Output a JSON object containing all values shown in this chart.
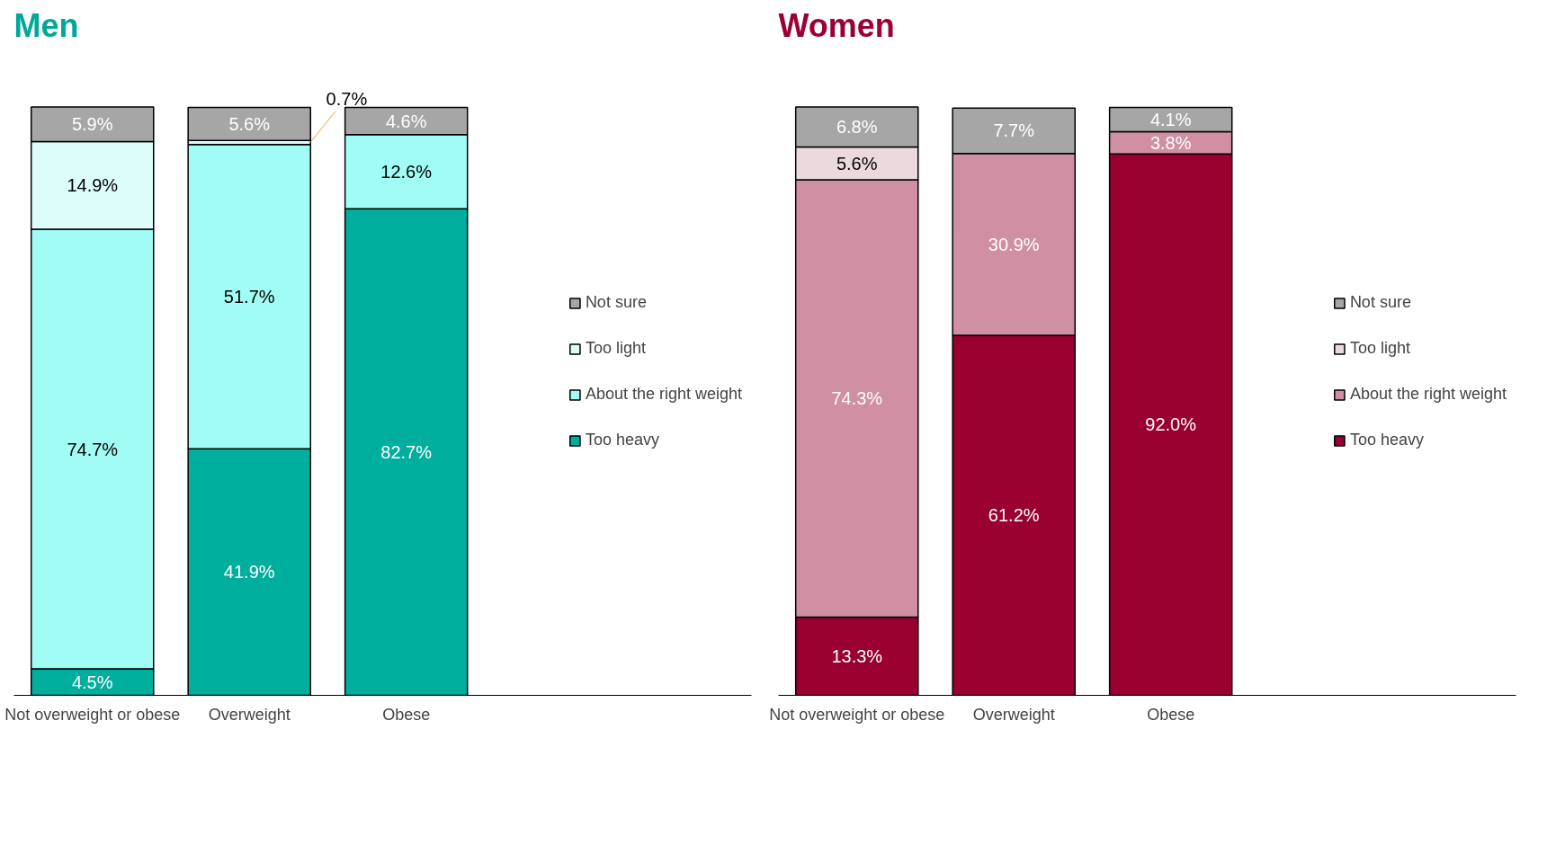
{
  "chart_data": [
    {
      "type": "bar",
      "title": "Men",
      "stacked": true,
      "legend": "right",
      "grid": false,
      "tick_labels": "x",
      "categories": [
        "Not overweight or obese",
        "Overweight",
        "Obese"
      ],
      "series": [
        {
          "name": "Too heavy",
          "color": "#00ae9e",
          "values": [
            4.5,
            41.9,
            82.7
          ],
          "value_labels": [
            "4.5%",
            "41.9%",
            "82.7%"
          ]
        },
        {
          "name": "About the right weight",
          "color": "#a0fcf4",
          "values": [
            74.7,
            51.7,
            12.6
          ],
          "value_labels": [
            "74.7%",
            "51.7%",
            "12.6%"
          ]
        },
        {
          "name": "Too light",
          "color": "#ddfdfb",
          "values": [
            14.9,
            0.7,
            null
          ],
          "value_labels": [
            "14.9%",
            "0.7%",
            null
          ]
        },
        {
          "name": "Not sure",
          "color": "#a6a6a6",
          "values": [
            5.9,
            5.6,
            4.6
          ],
          "value_labels": [
            "5.9%",
            "5.6%",
            "4.6%"
          ]
        }
      ]
    },
    {
      "type": "bar",
      "title": "Women",
      "stacked": true,
      "legend": "right",
      "grid": false,
      "tick_labels": "x",
      "categories": [
        "Not overweight or obese",
        "Overweight",
        "Obese"
      ],
      "series": [
        {
          "name": "Too heavy",
          "color": "#990030",
          "values": [
            13.3,
            61.2,
            92.0
          ],
          "value_labels": [
            "13.3%",
            "61.2%",
            "92.0%"
          ]
        },
        {
          "name": "About the right weight",
          "color": "#d08fa3",
          "values": [
            74.3,
            30.9,
            3.8
          ],
          "value_labels": [
            "74.3%",
            "30.9%",
            "3.8%"
          ]
        },
        {
          "name": "Too light",
          "color": "#ecd9de",
          "values": [
            5.6,
            null,
            null
          ],
          "value_labels": [
            "5.6%",
            null,
            null
          ]
        },
        {
          "name": "Not sure",
          "color": "#a6a6a6",
          "values": [
            6.8,
            7.7,
            4.1
          ],
          "value_labels": [
            "6.8%",
            "7.7%",
            "4.1%"
          ]
        }
      ]
    }
  ]
}
